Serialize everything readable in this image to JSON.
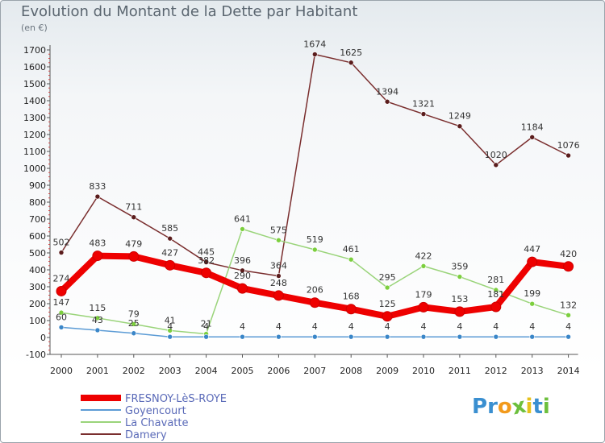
{
  "title": "Evolution du Montant de la Dette par Habitant",
  "unit_label": "(en €)",
  "logo": {
    "letters": [
      "P",
      "r",
      "o",
      "x",
      "i",
      "t",
      "i"
    ],
    "colors": [
      "#3a8fd0",
      "#3a8fd0",
      "#f29a1c",
      "#6cbf3c",
      "#e6c11c",
      "#3a8fd0",
      "#6cbf3c"
    ]
  },
  "chart_data": {
    "type": "line",
    "title": "Evolution du Montant de la Dette par Habitant",
    "ylabel": "(en €)",
    "xlabel": "",
    "x": [
      "2000",
      "2001",
      "2002",
      "2003",
      "2004",
      "2005",
      "2006",
      "2007",
      "2008",
      "2009",
      "2010",
      "2011",
      "2012",
      "2013",
      "2014"
    ],
    "ylim": [
      -100,
      1700
    ],
    "yticks": [
      "-100",
      "0",
      "100",
      "200",
      "300",
      "400",
      "500",
      "600",
      "700",
      "800",
      "900",
      "1000",
      "1100",
      "1200",
      "1300",
      "1400",
      "1500",
      "1600",
      "1700"
    ],
    "grid": false,
    "legend_position": "bottom-left",
    "series": [
      {
        "name": "Damery",
        "color": "#7a2e2e",
        "values": [
          502,
          833,
          711,
          585,
          445,
          396,
          364,
          1674,
          1625,
          1394,
          1321,
          1249,
          1020,
          1184,
          1076
        ],
        "labels": [
          "502",
          "833",
          "711",
          "585",
          "445",
          "396",
          "364",
          "1674",
          "1625",
          "1394",
          "1321",
          "1249",
          "1020",
          "1184",
          "1076"
        ]
      },
      {
        "name": "La Chavatte",
        "color": "#9ad47a",
        "values": [
          147,
          115,
          79,
          41,
          21,
          641,
          575,
          519,
          461,
          295,
          422,
          359,
          281,
          199,
          132
        ],
        "labels": [
          "147",
          "115",
          "79",
          "41",
          "21",
          "641",
          "575",
          "519",
          "461",
          "295",
          "422",
          "359",
          "281",
          "199",
          "132"
        ]
      },
      {
        "name": "Goyencourt",
        "color": "#5b9bd5",
        "values": [
          60,
          43,
          25,
          4,
          4,
          4,
          4,
          4,
          4,
          4,
          4,
          4,
          4,
          4,
          4
        ],
        "labels": [
          "60",
          "43",
          "25",
          "4",
          "4",
          "4",
          "4",
          "4",
          "4",
          "4",
          "4",
          "4",
          "4",
          "4",
          "4"
        ]
      },
      {
        "name": "FRESNOY-LèS-ROYE",
        "color": "#ee0000",
        "values": [
          274,
          483,
          479,
          427,
          382,
          290,
          248,
          206,
          168,
          125,
          179,
          153,
          181,
          447,
          420
        ],
        "labels": [
          "274",
          "483",
          "479",
          "427",
          "382",
          "290",
          "248",
          "206",
          "168",
          "125",
          "179",
          "153",
          "181",
          "447",
          "420"
        ]
      }
    ],
    "legend": [
      "FRESNOY-LèS-ROYE",
      "Goyencourt",
      "La Chavatte",
      "Damery"
    ]
  }
}
